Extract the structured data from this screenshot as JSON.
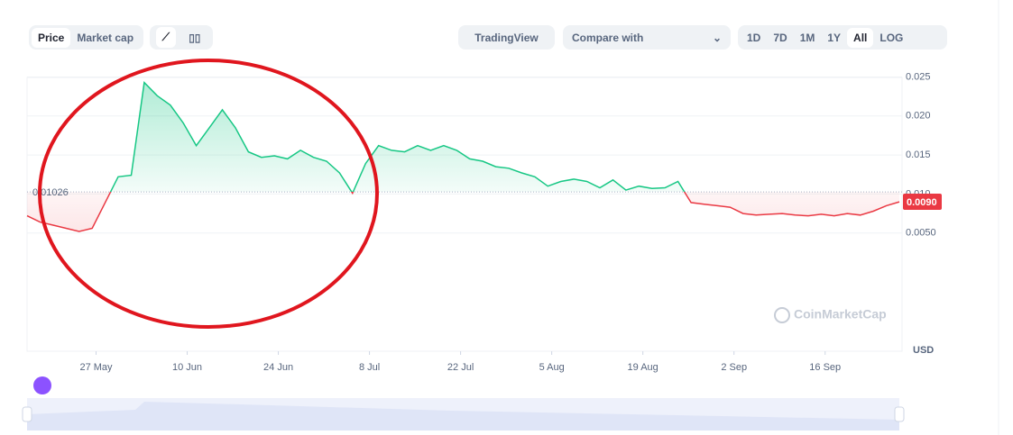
{
  "toolbar": {
    "tabs": [
      "Price",
      "Market cap"
    ],
    "tradingview": "TradingView",
    "compare": "Compare with",
    "ranges": [
      "1D",
      "7D",
      "1M",
      "1Y",
      "All",
      "LOG"
    ]
  },
  "watermark": "CoinMarketCap",
  "chart_data": {
    "type": "area",
    "y_unit": "USD",
    "series": [
      {
        "name": "Price",
        "color": "#16c784",
        "color_below": "#ea3943",
        "values": [
          0.0072,
          0.0064,
          0.006,
          0.0056,
          0.0052,
          0.0056,
          0.0089,
          0.0122,
          0.0124,
          0.0243,
          0.0226,
          0.0214,
          0.0191,
          0.0162,
          0.0185,
          0.0208,
          0.0185,
          0.0154,
          0.0147,
          0.0149,
          0.0145,
          0.0156,
          0.0147,
          0.0142,
          0.0127,
          0.0101,
          0.0139,
          0.0162,
          0.0156,
          0.0154,
          0.0162,
          0.0156,
          0.0162,
          0.0156,
          0.0145,
          0.0142,
          0.0135,
          0.0133,
          0.0127,
          0.0122,
          0.011,
          0.0116,
          0.0119,
          0.0116,
          0.0108,
          0.0118,
          0.0105,
          0.011,
          0.0107,
          0.0108,
          0.0116,
          0.0089,
          0.0087,
          0.0085,
          0.0083,
          0.0075,
          0.0073,
          0.0074,
          0.0075,
          0.0073,
          0.0072,
          0.0074,
          0.0072,
          0.0075,
          0.0073,
          0.0078,
          0.0085,
          0.009
        ]
      }
    ],
    "baseline": {
      "value": 0.01026,
      "label": "0.01026"
    },
    "current": {
      "value": 0.009,
      "label": "0.0090"
    },
    "xlim": [
      0,
      67
    ],
    "xticks": [
      {
        "value": 5.3,
        "label": "27 May"
      },
      {
        "value": 12.3,
        "label": "10 Jun"
      },
      {
        "value": 19.3,
        "label": "24 Jun"
      },
      {
        "value": 26.3,
        "label": "8 Jul"
      },
      {
        "value": 33.3,
        "label": "22 Jul"
      },
      {
        "value": 40.3,
        "label": "5 Aug"
      },
      {
        "value": 47.3,
        "label": "19 Aug"
      },
      {
        "value": 54.3,
        "label": "2 Sep"
      },
      {
        "value": 61.3,
        "label": "16 Sep"
      }
    ],
    "ylim": [
      -0.01,
      0.025
    ],
    "yticks": [
      {
        "value": 0.005,
        "label": "0.0050"
      },
      {
        "value": 0.01,
        "label": "0.010"
      },
      {
        "value": 0.015,
        "label": "0.015"
      },
      {
        "value": 0.02,
        "label": "0.020"
      },
      {
        "value": 0.025,
        "label": "0.025"
      }
    ],
    "grid": true
  }
}
